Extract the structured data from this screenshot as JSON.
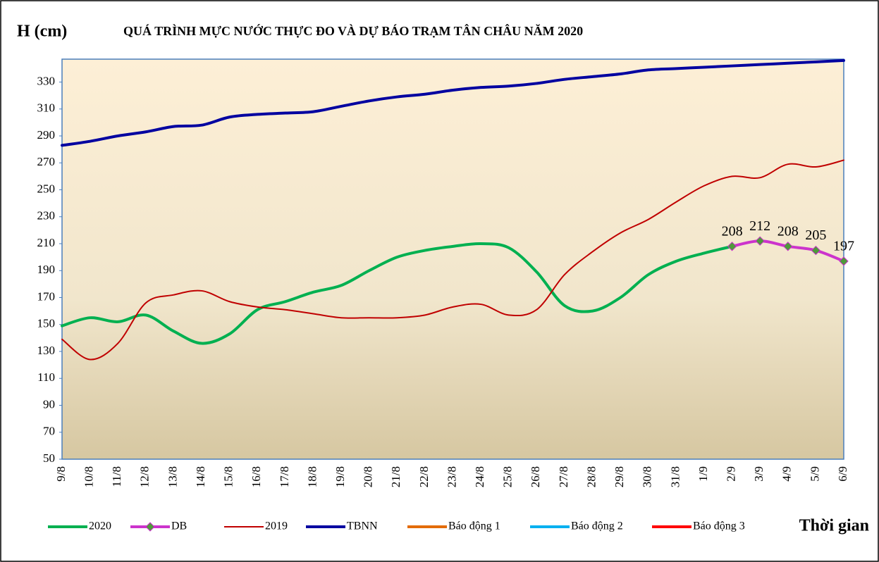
{
  "chart_data": {
    "type": "line",
    "title": "QUÁ TRÌNH MỰC NƯỚC THỰC ĐO VÀ DỰ BÁO TRẠM TÂN CHÂU NĂM 2020",
    "y_label": "H (cm)",
    "x_label": "Thời gian",
    "categories": [
      "9/8",
      "10/8",
      "11/8",
      "12/8",
      "13/8",
      "14/8",
      "15/8",
      "16/8",
      "17/8",
      "18/8",
      "19/8",
      "20/8",
      "21/8",
      "22/8",
      "23/8",
      "24/8",
      "25/8",
      "26/8",
      "27/8",
      "28/8",
      "29/8",
      "30/8",
      "31/8",
      "1/9",
      "2/9",
      "3/9",
      "4/9",
      "5/9",
      "6/9"
    ],
    "ylim": [
      50,
      347
    ],
    "yticks": [
      50,
      70,
      90,
      110,
      130,
      150,
      170,
      190,
      210,
      230,
      250,
      270,
      290,
      310,
      330
    ],
    "series": [
      {
        "name": "2020",
        "color": "#00b050",
        "width": 4,
        "values": [
          149,
          155,
          152,
          157,
          145,
          136,
          143,
          161,
          167,
          174,
          179,
          190,
          200,
          205,
          208,
          210,
          207,
          189,
          164,
          160,
          170,
          187,
          197,
          203,
          208,
          null,
          null,
          null,
          null
        ]
      },
      {
        "name": "DB",
        "color": "#cc33cc",
        "width": 4,
        "marker": "diamond",
        "marker_color": "#4e9a3a",
        "values": [
          null,
          null,
          null,
          null,
          null,
          null,
          null,
          null,
          null,
          null,
          null,
          null,
          null,
          null,
          null,
          null,
          null,
          null,
          null,
          null,
          null,
          null,
          null,
          null,
          208,
          212,
          208,
          205,
          197
        ],
        "value_labels": [
          null,
          null,
          null,
          null,
          null,
          null,
          null,
          null,
          null,
          null,
          null,
          null,
          null,
          null,
          null,
          null,
          null,
          null,
          null,
          null,
          null,
          null,
          null,
          null,
          "208",
          "212",
          "208",
          "205",
          "197"
        ]
      },
      {
        "name": "2019",
        "color": "#c00000",
        "width": 2,
        "values": [
          139,
          124,
          136,
          166,
          172,
          175,
          167,
          163,
          161,
          158,
          155,
          155,
          155,
          157,
          163,
          165,
          157,
          161,
          187,
          204,
          218,
          228,
          241,
          253,
          260,
          259,
          269,
          267,
          272
        ]
      },
      {
        "name": "TBNN",
        "color": "#0000a0",
        "width": 4,
        "values": [
          283,
          286,
          290,
          293,
          297,
          298,
          304,
          306,
          307,
          308,
          312,
          316,
          319,
          321,
          324,
          326,
          327,
          329,
          332,
          334,
          336,
          339,
          340,
          341,
          342,
          343,
          344,
          345,
          346
        ]
      },
      {
        "name": "Báo động 1",
        "color": "#e36c09",
        "width": 4,
        "values": [
          null,
          null,
          null,
          null,
          null,
          null,
          null,
          null,
          null,
          null,
          null,
          null,
          null,
          null,
          null,
          null,
          null,
          null,
          null,
          null,
          null,
          null,
          null,
          null,
          null,
          null,
          null,
          null,
          null
        ]
      },
      {
        "name": "Báo động 2",
        "color": "#00b0f0",
        "width": 4,
        "values": [
          null,
          null,
          null,
          null,
          null,
          null,
          null,
          null,
          null,
          null,
          null,
          null,
          null,
          null,
          null,
          null,
          null,
          null,
          null,
          null,
          null,
          null,
          null,
          null,
          null,
          null,
          null,
          null,
          null
        ]
      },
      {
        "name": "Báo động 3",
        "color": "#ff0000",
        "width": 4,
        "values": [
          null,
          null,
          null,
          null,
          null,
          null,
          null,
          null,
          null,
          null,
          null,
          null,
          null,
          null,
          null,
          null,
          null,
          null,
          null,
          null,
          null,
          null,
          null,
          null,
          null,
          null,
          null,
          null,
          null
        ]
      }
    ]
  }
}
